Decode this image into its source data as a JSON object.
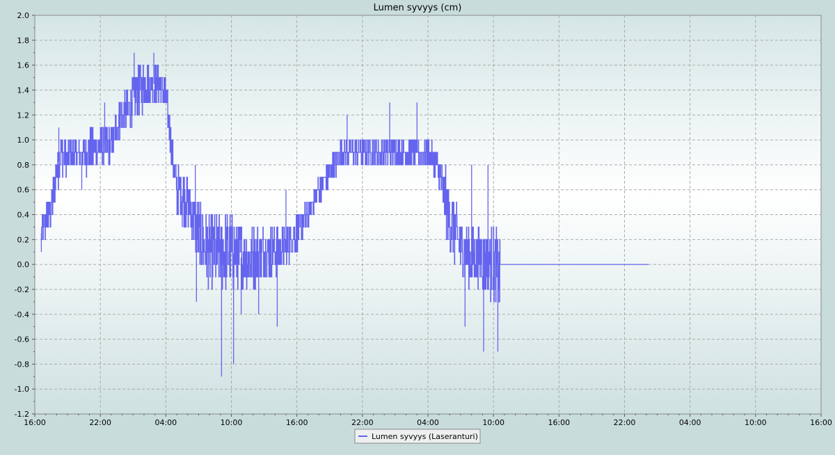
{
  "chart_data": {
    "type": "line",
    "title": "Lumen syvyys (cm)",
    "xlabel": "",
    "ylabel": "",
    "x_unit": "hours since first tick (16:00)",
    "xlim": [
      0,
      72
    ],
    "ylim": [
      -1.2,
      2.0
    ],
    "y_tick_step": 0.2,
    "x_ticks": [
      {
        "x": 0,
        "label": "16:00"
      },
      {
        "x": 6,
        "label": "22:00"
      },
      {
        "x": 12,
        "label": "04:00"
      },
      {
        "x": 18,
        "label": "10:00"
      },
      {
        "x": 24,
        "label": "16:00"
      },
      {
        "x": 30,
        "label": "22:00"
      },
      {
        "x": 36,
        "label": "04:00"
      },
      {
        "x": 42,
        "label": "10:00"
      },
      {
        "x": 48,
        "label": "16:00"
      },
      {
        "x": 54,
        "label": "22:00"
      },
      {
        "x": 60,
        "label": "04:00"
      },
      {
        "x": 66,
        "label": "10:00"
      },
      {
        "x": 72,
        "label": "16:00"
      }
    ],
    "grid": true,
    "legend_position": "bottom-center",
    "series": [
      {
        "name": "Lumen syvyys (Laseranturi)",
        "color": "#6464ee",
        "noisy_bands": [
          {
            "x": 0.6,
            "lo": 0.1,
            "hi": 0.4
          },
          {
            "x": 1.0,
            "lo": 0.2,
            "hi": 0.5
          },
          {
            "x": 1.5,
            "lo": 0.3,
            "hi": 0.6
          },
          {
            "x": 2.0,
            "lo": 0.6,
            "hi": 0.9
          },
          {
            "x": 2.4,
            "lo": 0.7,
            "hi": 1.1
          },
          {
            "x": 3.0,
            "lo": 0.7,
            "hi": 1.0
          },
          {
            "x": 4.0,
            "lo": 0.8,
            "hi": 1.0
          },
          {
            "x": 5.0,
            "lo": 0.7,
            "hi": 1.1
          },
          {
            "x": 5.7,
            "lo": 0.8,
            "hi": 1.1
          },
          {
            "x": 6.3,
            "lo": 0.8,
            "hi": 1.1
          },
          {
            "x": 7.0,
            "lo": 0.8,
            "hi": 1.1
          },
          {
            "x": 7.6,
            "lo": 1.0,
            "hi": 1.3
          },
          {
            "x": 8.5,
            "lo": 1.1,
            "hi": 1.4
          },
          {
            "x": 9.5,
            "lo": 1.2,
            "hi": 1.6
          },
          {
            "x": 10.5,
            "lo": 1.3,
            "hi": 1.6
          },
          {
            "x": 11.5,
            "lo": 1.3,
            "hi": 1.6
          },
          {
            "x": 12.0,
            "lo": 1.2,
            "hi": 1.5
          },
          {
            "x": 12.5,
            "lo": 0.8,
            "hi": 1.1
          },
          {
            "x": 13.0,
            "lo": 0.4,
            "hi": 0.8
          },
          {
            "x": 14.0,
            "lo": 0.3,
            "hi": 0.7
          },
          {
            "x": 15.0,
            "lo": 0.0,
            "hi": 0.5
          },
          {
            "x": 16.0,
            "lo": -0.2,
            "hi": 0.4
          },
          {
            "x": 17.0,
            "lo": -0.2,
            "hi": 0.4
          },
          {
            "x": 18.0,
            "lo": -0.2,
            "hi": 0.4
          },
          {
            "x": 19.0,
            "lo": -0.2,
            "hi": 0.3
          },
          {
            "x": 20.0,
            "lo": -0.2,
            "hi": 0.3
          },
          {
            "x": 21.0,
            "lo": -0.1,
            "hi": 0.3
          },
          {
            "x": 22.0,
            "lo": -0.1,
            "hi": 0.3
          },
          {
            "x": 23.0,
            "lo": 0.0,
            "hi": 0.3
          },
          {
            "x": 24.0,
            "lo": 0.1,
            "hi": 0.4
          },
          {
            "x": 25.0,
            "lo": 0.3,
            "hi": 0.5
          },
          {
            "x": 26.0,
            "lo": 0.5,
            "hi": 0.7
          },
          {
            "x": 27.0,
            "lo": 0.6,
            "hi": 0.9
          },
          {
            "x": 28.0,
            "lo": 0.8,
            "hi": 1.0
          },
          {
            "x": 29.0,
            "lo": 0.8,
            "hi": 1.0
          },
          {
            "x": 30.0,
            "lo": 0.8,
            "hi": 1.0
          },
          {
            "x": 31.0,
            "lo": 0.8,
            "hi": 1.0
          },
          {
            "x": 32.0,
            "lo": 0.8,
            "hi": 1.0
          },
          {
            "x": 33.0,
            "lo": 0.8,
            "hi": 1.0
          },
          {
            "x": 34.0,
            "lo": 0.8,
            "hi": 1.0
          },
          {
            "x": 35.0,
            "lo": 0.8,
            "hi": 1.0
          },
          {
            "x": 36.0,
            "lo": 0.8,
            "hi": 1.0
          },
          {
            "x": 37.0,
            "lo": 0.6,
            "hi": 0.9
          },
          {
            "x": 37.5,
            "lo": 0.3,
            "hi": 0.8
          },
          {
            "x": 38.0,
            "lo": 0.1,
            "hi": 0.6
          },
          {
            "x": 39.0,
            "lo": -0.1,
            "hi": 0.4
          },
          {
            "x": 40.0,
            "lo": -0.2,
            "hi": 0.3
          },
          {
            "x": 41.0,
            "lo": -0.2,
            "hi": 0.3
          },
          {
            "x": 42.0,
            "lo": -0.3,
            "hi": 0.3
          },
          {
            "x": 42.6,
            "lo": -0.4,
            "hi": 0.2
          }
        ],
        "spikes": [
          {
            "x": 0.6,
            "y": 0.1
          },
          {
            "x": 2.2,
            "y": 1.1
          },
          {
            "x": 4.3,
            "y": 0.6
          },
          {
            "x": 6.4,
            "y": 1.3
          },
          {
            "x": 9.1,
            "y": 1.7
          },
          {
            "x": 10.9,
            "y": 1.7
          },
          {
            "x": 13.5,
            "y": 0.3
          },
          {
            "x": 14.7,
            "y": 0.8
          },
          {
            "x": 14.8,
            "y": -0.3
          },
          {
            "x": 17.1,
            "y": -0.9
          },
          {
            "x": 18.2,
            "y": -0.8
          },
          {
            "x": 18.9,
            "y": -0.4
          },
          {
            "x": 20.5,
            "y": -0.4
          },
          {
            "x": 22.2,
            "y": -0.5
          },
          {
            "x": 23.0,
            "y": 0.6
          },
          {
            "x": 28.6,
            "y": 1.2
          },
          {
            "x": 32.5,
            "y": 1.3
          },
          {
            "x": 35.0,
            "y": 1.3
          },
          {
            "x": 40.0,
            "y": 0.8
          },
          {
            "x": 39.4,
            "y": -0.5
          },
          {
            "x": 41.1,
            "y": -0.7
          },
          {
            "x": 41.5,
            "y": 0.8
          },
          {
            "x": 42.4,
            "y": -0.7
          }
        ],
        "flat_segment": {
          "x_start": 42.8,
          "x_end": 56.2,
          "y": 0.0
        },
        "noise_seed": 12345
      }
    ]
  }
}
